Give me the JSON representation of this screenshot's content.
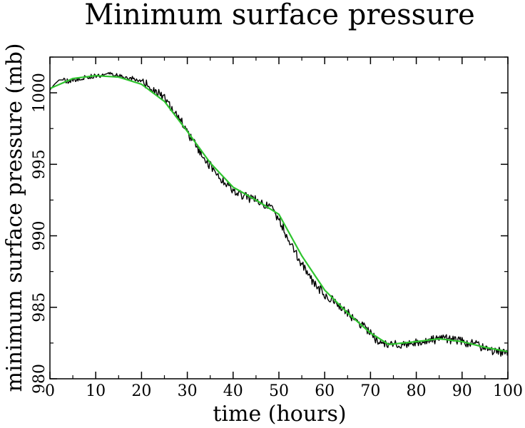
{
  "chart_data": {
    "type": "line",
    "title": "Minimum surface pressure",
    "xlabel": "time (hours)",
    "ylabel": "minimum surface pressure (mb)",
    "xlim": [
      0,
      100
    ],
    "ylim": [
      980,
      1002.5
    ],
    "x_ticks": [
      0,
      10,
      20,
      30,
      40,
      50,
      60,
      70,
      80,
      90,
      100
    ],
    "y_ticks": [
      980,
      985,
      990,
      995,
      1000
    ],
    "grid": false,
    "legend": "none",
    "series": [
      {
        "color": "#000000",
        "noise_amplitude": 0.35,
        "x": [
          0,
          1,
          2,
          3,
          4,
          5,
          8,
          10,
          13,
          15,
          18,
          20,
          22,
          25,
          28,
          30,
          32,
          35,
          38,
          40,
          42,
          45,
          48,
          50,
          52,
          55,
          58,
          60,
          63,
          66,
          68,
          70,
          72,
          74,
          76,
          78,
          80,
          83,
          86,
          88,
          90,
          93,
          96,
          98,
          100
        ],
        "y": [
          1000.2,
          1000.6,
          1000.9,
          1000.9,
          1000.8,
          1000.9,
          1001.1,
          1001.2,
          1001.3,
          1001.2,
          1001.0,
          1000.8,
          1000.4,
          999.6,
          998.4,
          997.3,
          996.2,
          994.9,
          993.8,
          993.2,
          992.8,
          992.5,
          992.0,
          991.2,
          989.8,
          988.0,
          986.5,
          985.9,
          985.2,
          984.3,
          983.8,
          983.2,
          982.5,
          982.3,
          982.4,
          982.5,
          982.6,
          982.7,
          982.8,
          982.7,
          982.6,
          982.4,
          982.0,
          981.9,
          981.7
        ]
      },
      {
        "color": "#2ec42e",
        "x": [
          0,
          5,
          10,
          15,
          20,
          25,
          30,
          35,
          40,
          45,
          50,
          55,
          60,
          65,
          70,
          74,
          80,
          85,
          90,
          95,
          100
        ],
        "y": [
          1000.3,
          1001.0,
          1001.2,
          1001.1,
          1000.6,
          999.4,
          997.3,
          995.1,
          993.4,
          992.5,
          991.5,
          988.6,
          986.2,
          984.6,
          983.2,
          982.4,
          982.6,
          982.8,
          982.6,
          982.2,
          981.9
        ]
      }
    ]
  }
}
